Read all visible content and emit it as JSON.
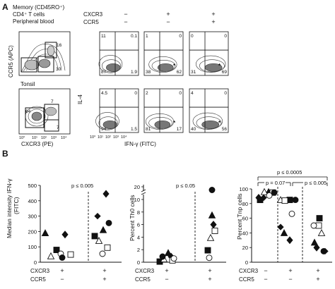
{
  "panel_a": {
    "letter": "A",
    "header_lines": [
      "Memory (CD45RO⁺)",
      "CD4⁺ T cells",
      "Peripheral blood"
    ],
    "row_cxcr3": {
      "label": "CXCR3",
      "signs": [
        "−",
        "+",
        "+"
      ]
    },
    "row_ccr5": {
      "label": "CCR5",
      "signs": [
        "−",
        "−",
        "+"
      ]
    },
    "pb_plot": {
      "numbers": [
        "16",
        "30"
      ],
      "ylabel": "CCR5 (APC)"
    },
    "tonsil_plot": {
      "title": "Tonsil",
      "numbers": [
        "7",
        "64",
        "7"
      ],
      "xlabel": "CXCR3 (PE)"
    },
    "tick_labels": [
      "10⁰",
      "10¹",
      "10²",
      "10³",
      "10⁴"
    ],
    "facs_ylabel": "IL-4",
    "facs_xlabel": "IFN-γ (FITC)",
    "quad_top": [
      {
        "tl": "11",
        "tr": "0.1",
        "bl": "87",
        "br": "1.9"
      },
      {
        "tl": "1",
        "tr": "0",
        "bl": "38",
        "br": "62"
      },
      {
        "tl": "0",
        "tr": "0",
        "bl": "31",
        "br": "69"
      }
    ],
    "quad_bottom": [
      {
        "tl": "4.5",
        "tr": "0",
        "bl": "94",
        "br": "1.5"
      },
      {
        "tl": "2",
        "tr": "0",
        "bl": "81",
        "br": "17"
      },
      {
        "tl": "4",
        "tr": "0",
        "bl": "40",
        "br": "56"
      }
    ],
    "asterisk": "*"
  },
  "panel_b": {
    "letter": "B",
    "x_row_labels": [
      "CXCR3",
      "CCR5"
    ],
    "chart1": {
      "ylabel": "Median intensity IFN-γ (FITC)",
      "ylabel_lines": [
        "Median intensity IFN-γ",
        "(FITC)"
      ],
      "yticks": [
        "0",
        "100",
        "200",
        "300",
        "400",
        "500"
      ],
      "pvalue": "p ≤ 0.005",
      "x_signs": [
        [
          "+",
          "−"
        ],
        [
          "+",
          "+"
        ]
      ]
    },
    "chart2": {
      "ylabel": "Percent Th0 cells",
      "yticks": [
        "0",
        "2",
        "4",
        "6",
        "8",
        "10",
        "20"
      ],
      "pvalue": "p ≤ 0.05",
      "x_signs": [
        [
          "+",
          "−"
        ],
        [
          "+",
          "+"
        ]
      ]
    },
    "chart3": {
      "ylabel": "Percent Tnp cells",
      "yticks": [
        "0",
        "20",
        "40",
        "60",
        "80",
        "100"
      ],
      "p_top": "p ≤ 0.0005",
      "p_left": "p = 0.07",
      "p_right": "p ≤ 0.005",
      "x_signs": [
        [
          "−",
          "−"
        ],
        [
          "+",
          "−"
        ],
        [
          "+",
          "+"
        ]
      ]
    }
  },
  "chart_data": [
    {
      "type": "scatter",
      "ylabel": "Median intensity IFN-γ (FITC)",
      "ylim": [
        0,
        500
      ],
      "categories": [
        "CXCR3+ CCR5−",
        "CXCR3+ CCR5+"
      ],
      "series": [
        {
          "marker": "filled-triangle",
          "values": [
            190,
            210
          ]
        },
        {
          "marker": "filled-diamond",
          "values": [
            180,
            445
          ]
        },
        {
          "marker": "filled-square",
          "values": [
            80,
            170
          ]
        },
        {
          "marker": "open-triangle",
          "values": [
            40,
            140
          ]
        },
        {
          "marker": "open-square",
          "values": [
            50,
            95
          ]
        },
        {
          "marker": "open-circle",
          "values": [
            55,
            55
          ]
        },
        {
          "marker": "filled-circle",
          "values": [
            30,
            255
          ]
        },
        {
          "marker": "filled-star",
          "values": [
            null,
            300
          ]
        }
      ],
      "pvalue": "p ≤ 0.005"
    },
    {
      "type": "scatter",
      "ylabel": "Percent Th0 cells",
      "ylim": [
        0,
        20
      ],
      "categories": [
        "CXCR3+ CCR5−",
        "CXCR3+ CCR5+"
      ],
      "series": [
        {
          "marker": "filled-triangle",
          "values": [
            1.5,
            7.5
          ]
        },
        {
          "marker": "filled-diamond",
          "values": [
            0.9,
            6.0
          ]
        },
        {
          "marker": "filled-square",
          "values": [
            0.1,
            1.9
          ]
        },
        {
          "marker": "open-triangle",
          "values": [
            0.5,
            3.9
          ]
        },
        {
          "marker": "open-square",
          "values": [
            0.3,
            5.0
          ]
        },
        {
          "marker": "open-circle",
          "values": [
            0.6,
            0.7
          ]
        },
        {
          "marker": "filled-circle",
          "values": [
            0.9,
            12.5
          ]
        }
      ],
      "pvalue": "p ≤ 0.05"
    },
    {
      "type": "scatter",
      "ylabel": "Percent Tnp cells",
      "ylim": [
        0,
        100
      ],
      "categories": [
        "CXCR3− CCR5−",
        "CXCR3+ CCR5−",
        "CXCR3+ CCR5+"
      ],
      "series": [
        {
          "marker": "filled-triangle",
          "values": [
            96,
            40,
            27
          ]
        },
        {
          "marker": "filled-diamond",
          "values": [
            88,
            30,
            20
          ]
        },
        {
          "marker": "filled-square",
          "values": [
            85,
            85,
            60
          ]
        },
        {
          "marker": "open-triangle",
          "values": [
            96,
            85,
            40
          ]
        },
        {
          "marker": "open-square",
          "values": [
            95,
            84,
            50
          ]
        },
        {
          "marker": "open-circle",
          "values": [
            91,
            66,
            50
          ]
        },
        {
          "marker": "filled-circle",
          "values": [
            95,
            85,
            15
          ]
        },
        {
          "marker": "filled-star",
          "values": [
            88,
            48,
            15
          ]
        }
      ],
      "p_top": "p ≤ 0.0005",
      "p_left": "p = 0.07",
      "p_right": "p ≤ 0.005"
    }
  ]
}
